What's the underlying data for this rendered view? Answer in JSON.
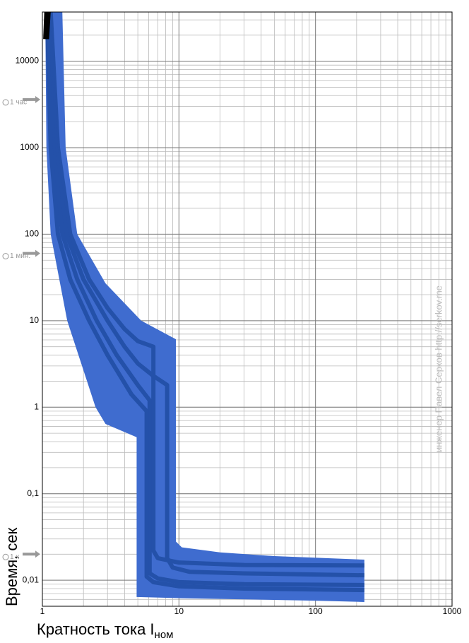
{
  "chart_data": {
    "type": "line",
    "xlog": true,
    "ylog": true,
    "xlim": [
      1,
      1000
    ],
    "ylim": [
      0.005,
      37000
    ],
    "xticks": [
      1,
      10,
      100,
      1000
    ],
    "yticks": [
      {
        "value": 0.01,
        "label": "0,01"
      },
      {
        "value": 0.1,
        "label": "0,1"
      },
      1,
      10,
      100,
      1000,
      10000
    ],
    "grid": true,
    "minor_grid": true,
    "x_label": "Кратность тока I",
    "x_label_sub": "ном",
    "y_label": "Время, сек",
    "band": {
      "color": "#3f6ccf",
      "upper_x": [
        1.4,
        1.48,
        1.8,
        2.9,
        5.3,
        9.5,
        9.5,
        10.5,
        20,
        50,
        228
      ],
      "upper_y": [
        37000,
        1000,
        100,
        27,
        10,
        6.1,
        0.028,
        0.024,
        0.021,
        0.019,
        0.0173
      ],
      "lower_x": [
        1.05,
        1.07,
        1.15,
        1.52,
        2.45,
        2.9,
        4.9,
        4.9,
        10,
        100,
        228
      ],
      "lower_y": [
        37000,
        1000,
        100,
        10,
        1,
        0.64,
        0.45,
        0.0064,
        0.0062,
        0.0058,
        0.0056
      ]
    },
    "series": [
      {
        "color": "#2451a9",
        "x": [
          1.15,
          1.3,
          1.6,
          2.2,
          3,
          4,
          5,
          6.5,
          6.5,
          7,
          10,
          30,
          228
        ],
        "values": [
          37000,
          1000,
          100,
          30,
          14,
          8,
          5.8,
          5,
          0.022,
          0.018,
          0.016,
          0.015,
          0.0148
        ]
      },
      {
        "color": "#2451a9",
        "x": [
          1.12,
          1.25,
          1.5,
          2,
          3,
          4,
          5,
          6.5,
          8.2,
          8.2,
          9,
          12,
          30,
          228
        ],
        "values": [
          37000,
          1000,
          100,
          30,
          10,
          5,
          3.2,
          2.3,
          1.8,
          0.018,
          0.014,
          0.0125,
          0.012,
          0.0114
        ]
      },
      {
        "color": "#2451a9",
        "x": [
          1.1,
          1.2,
          1.4,
          1.8,
          2.5,
          3.5,
          5,
          6.1,
          6.1,
          7,
          10,
          30,
          228
        ],
        "values": [
          37000,
          1000,
          100,
          30,
          10,
          4,
          1.8,
          1.2,
          0.012,
          0.0105,
          0.0095,
          0.009,
          0.0088
        ]
      },
      {
        "color": "#2451a9",
        "x": [
          1.08,
          1.15,
          1.3,
          1.6,
          2.2,
          3,
          4.5,
          5.8,
          5.8,
          6.5,
          10,
          30,
          228
        ],
        "values": [
          37000,
          1000,
          100,
          30,
          10,
          4,
          1.4,
          0.9,
          0.011,
          0.0095,
          0.0085,
          0.008,
          0.0077
        ]
      },
      {
        "color": "#000000",
        "x": [
          1.07,
          1.05
        ],
        "values": [
          37000,
          18000
        ]
      },
      {
        "color": "#000000",
        "x": [
          1.11,
          1.08
        ],
        "values": [
          37000,
          18000
        ]
      }
    ],
    "annotations": [
      {
        "text": "1 час",
        "y": 3600
      },
      {
        "text": "1 мин.",
        "y": 60
      },
      {
        "text": "1 x",
        "y": 0.02
      }
    ],
    "watermark": "инженер Павел Серков http://serkov.me"
  }
}
